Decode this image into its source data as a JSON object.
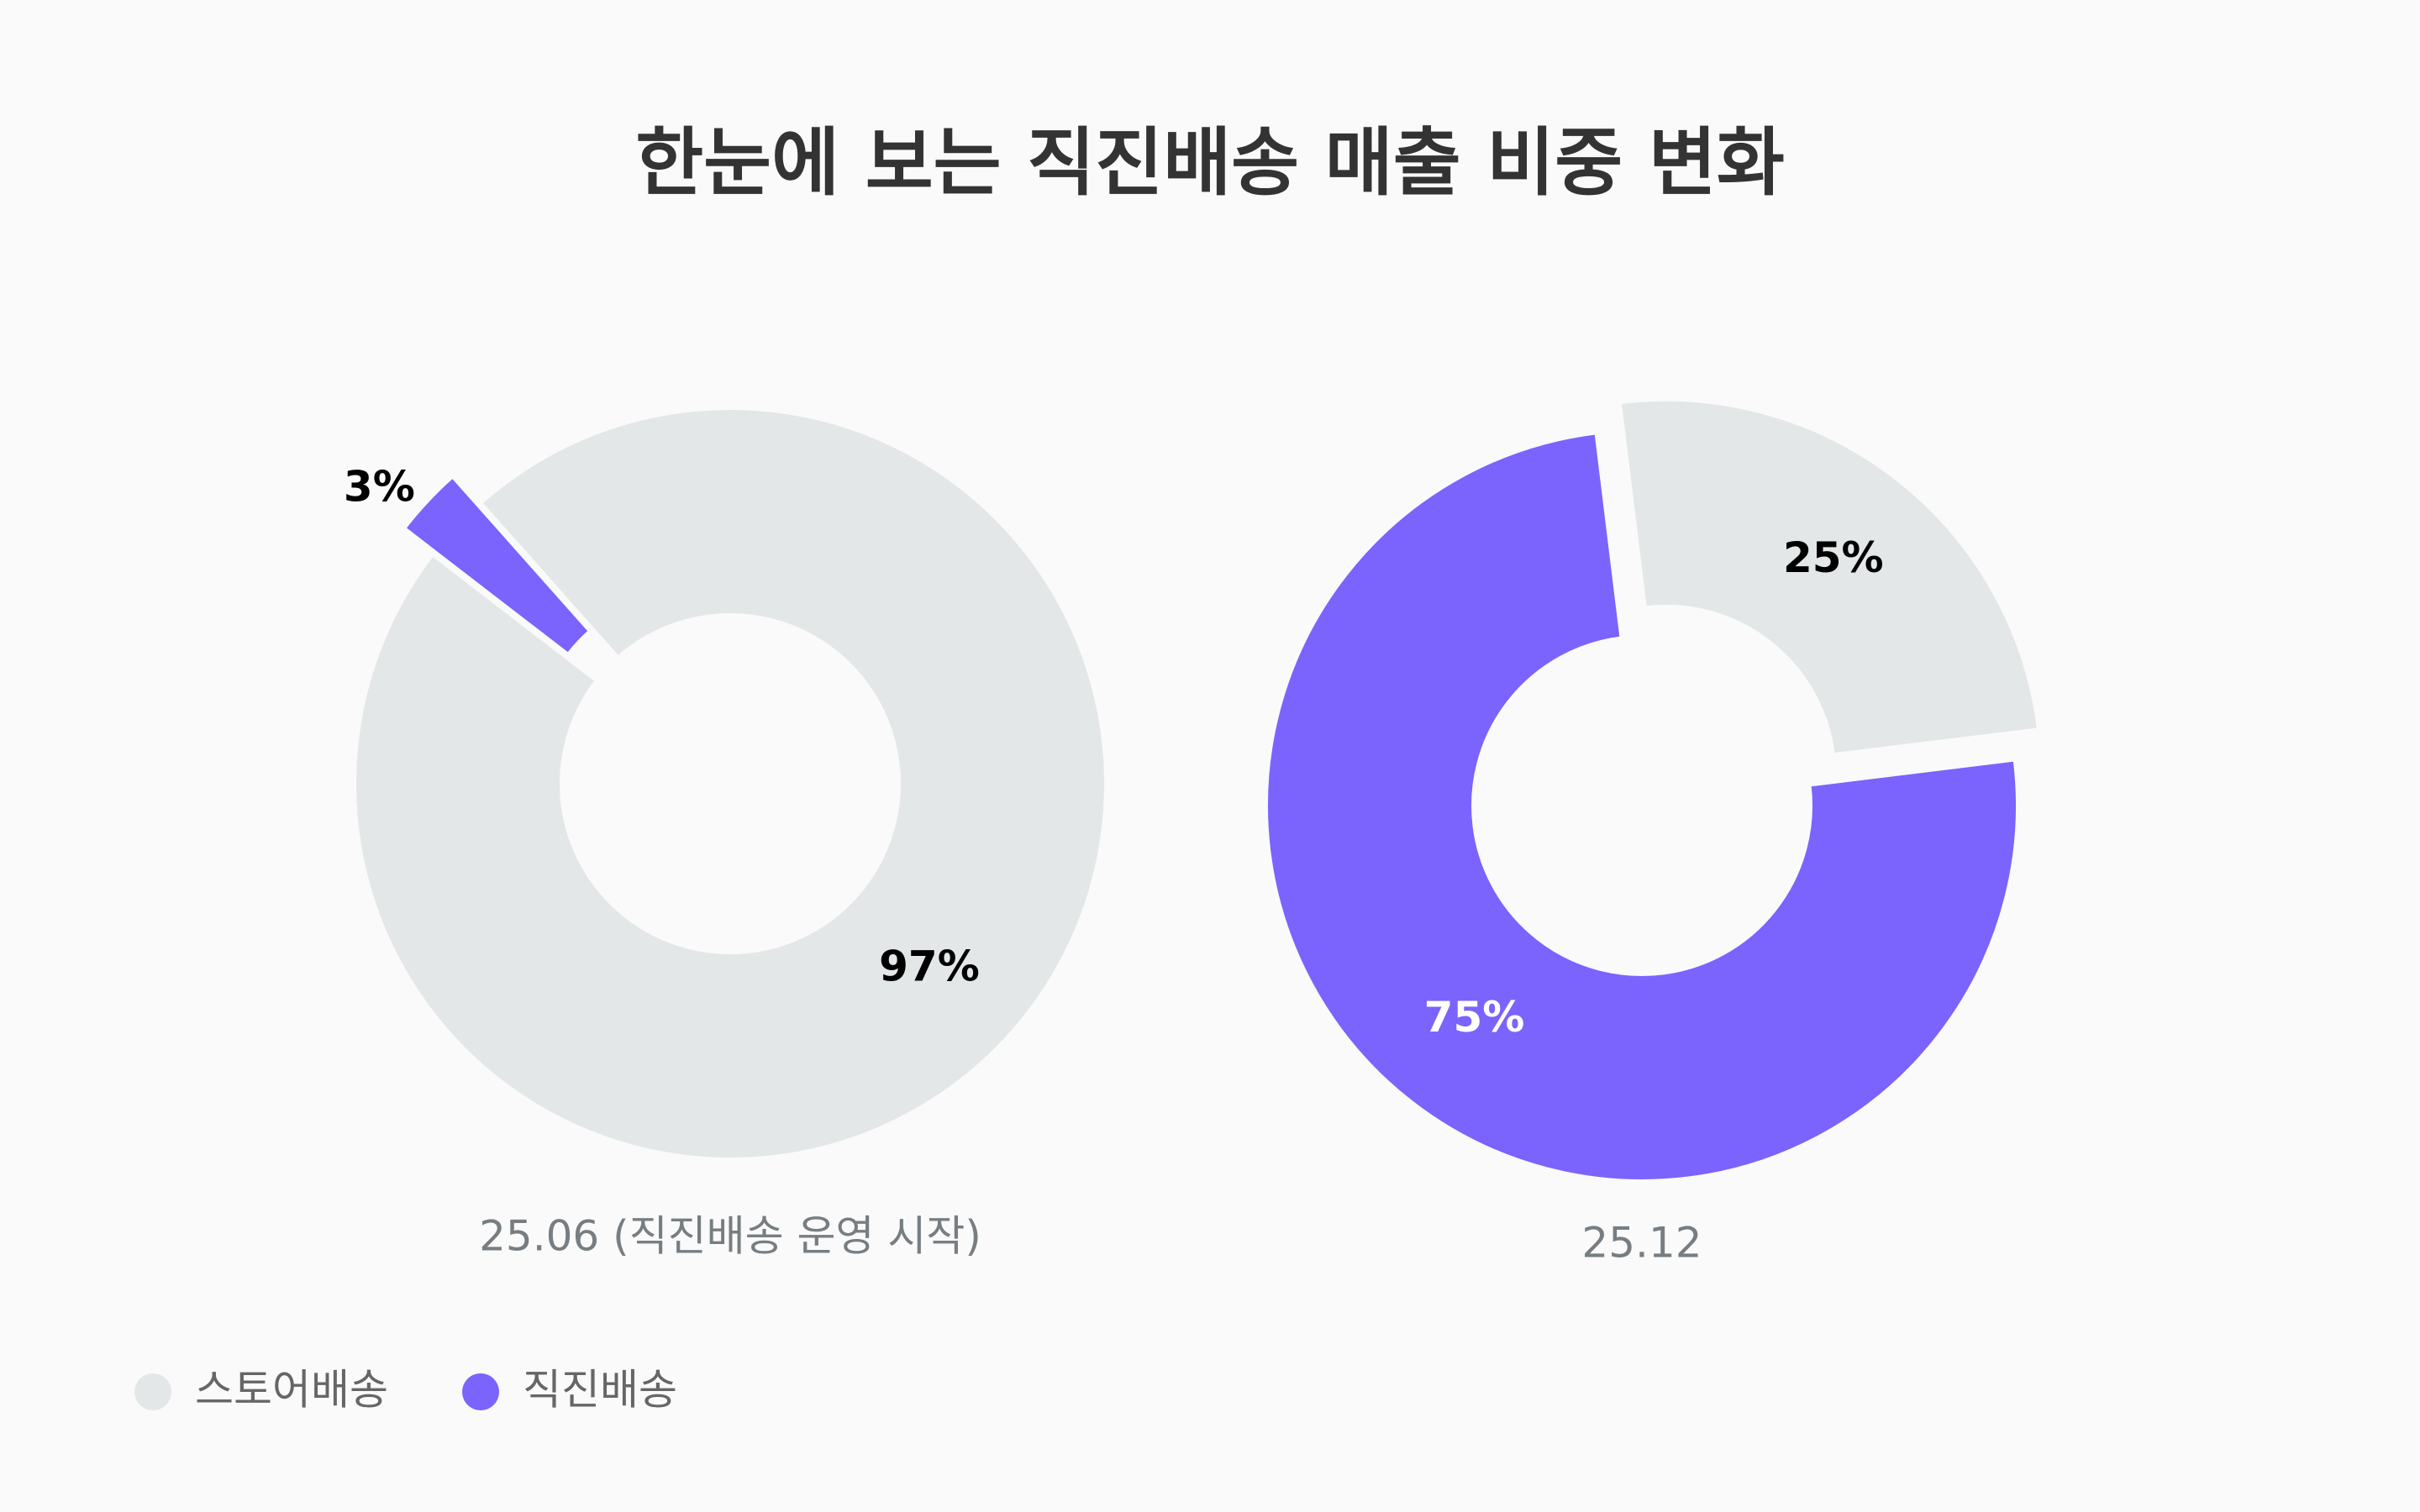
{
  "title": "한눈에 보는 직진배송 매출 비중 변화",
  "chart_data": [
    {
      "type": "pie",
      "subtitle": "25.06 (직진배송 운영 시작)",
      "categories": [
        "스토어배송",
        "직진배송"
      ],
      "values": [
        97,
        3
      ],
      "value_labels": [
        "97%",
        "3%"
      ],
      "colors": [
        "#e3e7e8",
        "#7b63fe"
      ]
    },
    {
      "type": "pie",
      "subtitle": "25.12",
      "categories": [
        "스토어배송",
        "직진배송"
      ],
      "values": [
        25,
        75
      ],
      "value_labels": [
        "25%",
        "75%"
      ],
      "colors": [
        "#e3e7e8",
        "#7b63fe"
      ]
    }
  ]
}
